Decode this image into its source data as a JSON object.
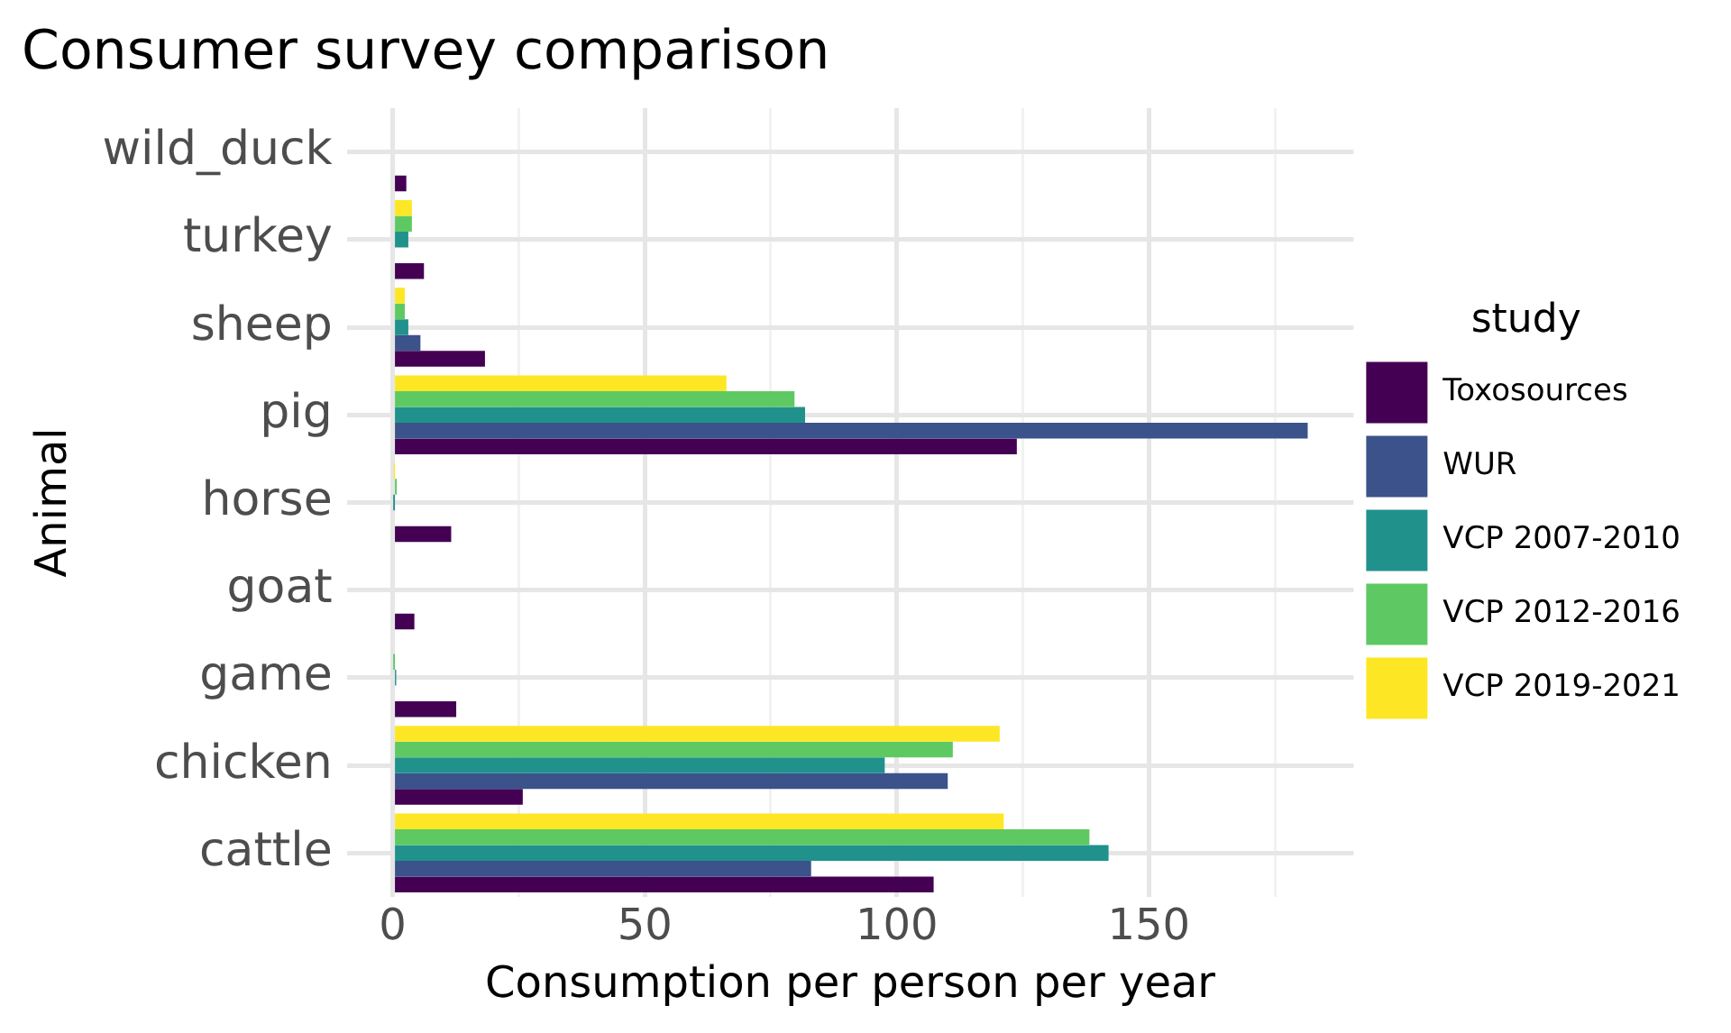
{
  "chart_data": {
    "type": "bar",
    "orientation": "horizontal",
    "title": "Consumer survey comparison",
    "xlabel": "Consumption per person per year",
    "ylabel": "Animal",
    "legend_title": "study",
    "legend": "right",
    "grid": true,
    "categories": [
      "wild_duck",
      "turkey",
      "sheep",
      "pig",
      "horse",
      "goat",
      "game",
      "chicken",
      "cattle"
    ],
    "xlim": [
      -9.1,
      190.6
    ],
    "xticks": [
      0,
      {
        "value": 25,
        "label": null
      },
      50,
      {
        "value": 75,
        "label": null
      },
      100,
      {
        "value": 125,
        "label": null
      },
      150,
      {
        "value": 175,
        "label": null
      }
    ],
    "series": [
      {
        "name": "Toxosources",
        "color": "#440154",
        "values": [
          2.7,
          6.2,
          18.3,
          123.8,
          11.6,
          4.3,
          12.6,
          25.8,
          107.3
        ]
      },
      {
        "name": "WUR",
        "color": "#3b528b",
        "values": [
          null,
          null,
          5.5,
          181.5,
          null,
          null,
          null,
          110.1,
          83.0
        ]
      },
      {
        "name": "VCP 2007-2010",
        "color": "#21918c",
        "values": [
          null,
          3.1,
          3.1,
          81.8,
          0.1,
          null,
          0.7,
          97.6,
          142.0
        ]
      },
      {
        "name": "VCP 2012-2016",
        "color": "#5ec962",
        "values": [
          null,
          3.8,
          2.4,
          79.7,
          0.8,
          null,
          0.1,
          111.1,
          138.2
        ]
      },
      {
        "name": "VCP 2019-2021",
        "color": "#fde725",
        "values": [
          null,
          3.8,
          2.4,
          66.2,
          0.2,
          null,
          null,
          120.4,
          121.2
        ]
      }
    ]
  }
}
